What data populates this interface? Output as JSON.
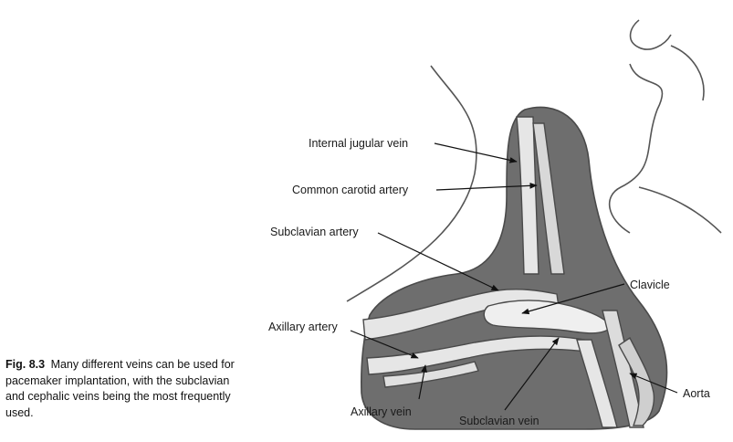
{
  "caption": {
    "number": "Fig. 8.3",
    "text": "Many different veins can be used for pacemaker implantation, with the subclavian and cephalic veins being the most frequently used."
  },
  "labels": {
    "internal_jugular_vein": "Internal jugular vein",
    "common_carotid_artery": "Common carotid artery",
    "subclavian_artery": "Subclavian artery",
    "clavicle": "Clavicle",
    "axillary_artery": "Axillary artery",
    "axillary_vein": "Axillary vein",
    "subclavian_vein": "Subclavian vein",
    "aorta": "Aorta"
  },
  "colors": {
    "tissue_shade": "#6e6e6e",
    "vessel_fill": "#e6e6e6",
    "outline": "#4a4a4a"
  }
}
